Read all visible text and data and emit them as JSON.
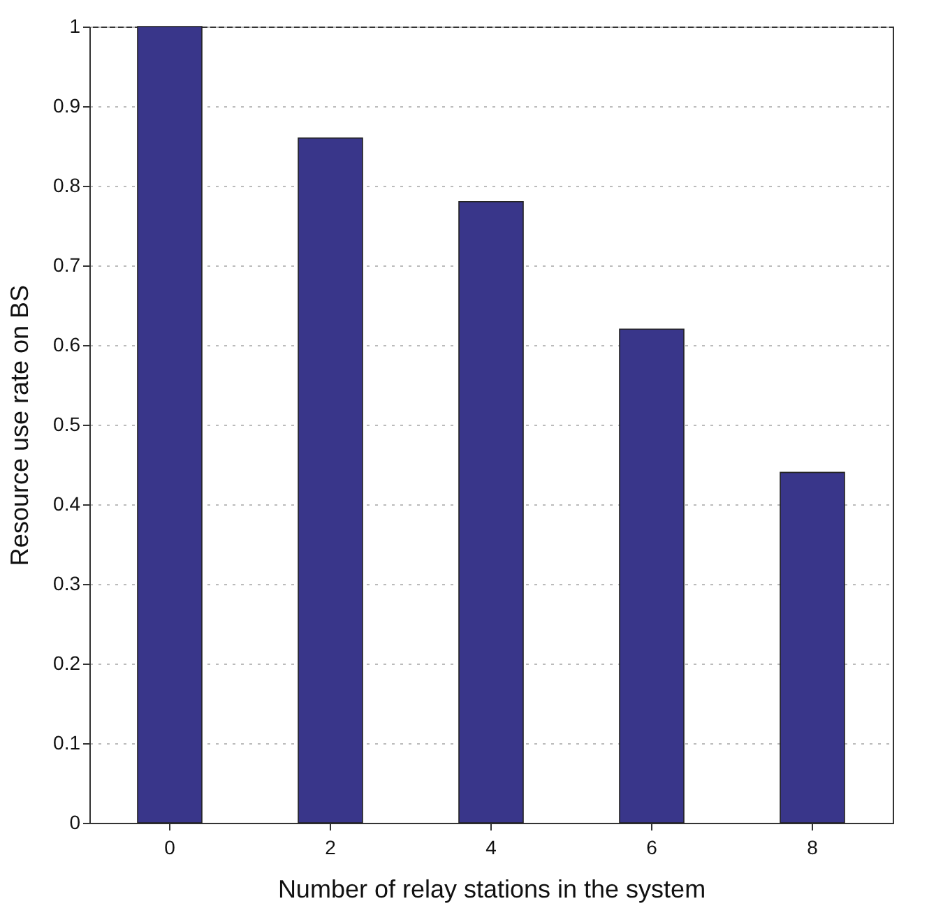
{
  "chart_data": {
    "type": "bar",
    "xlabel": "Number of relay stations in the system",
    "ylabel": "Resource use rate on BS",
    "categories": [
      "0",
      "2",
      "4",
      "6",
      "8"
    ],
    "values": [
      1,
      0.86,
      0.78,
      0.62,
      0.44
    ],
    "color": "#39368a",
    "ylim": [
      0,
      1
    ],
    "yticks": [
      0,
      0.1,
      0.2,
      0.3,
      0.4,
      0.5,
      0.6,
      0.7,
      0.8,
      0.9,
      1
    ],
    "grid": "y"
  }
}
